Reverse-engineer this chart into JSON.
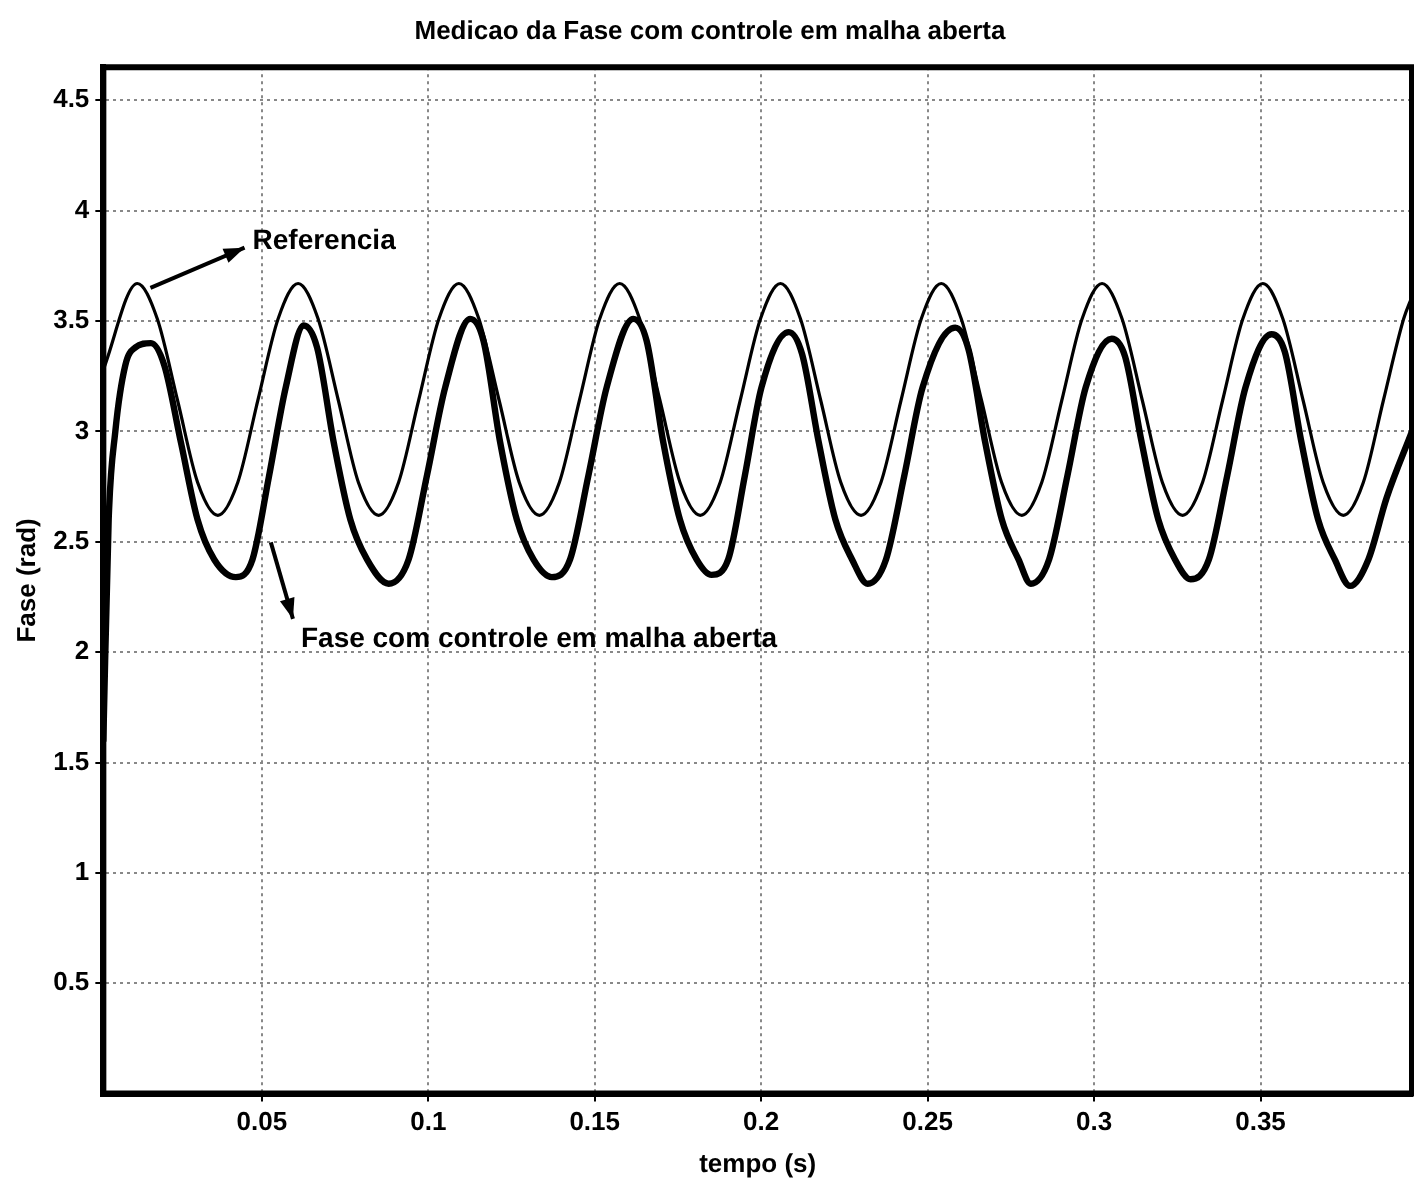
{
  "chart_data": {
    "type": "line",
    "title": "Medicao da Fase com controle em malha aberta",
    "xlabel": "tempo (s)",
    "ylabel": "Fase (rad)",
    "xlim": [
      0.0024,
      0.3955
    ],
    "xticks": [
      0.05,
      0.1,
      0.15,
      0.2,
      0.25,
      0.3,
      0.35
    ],
    "ylim": [
      0,
      4.65
    ],
    "yticks": [
      0.5,
      1,
      1.5,
      2,
      2.5,
      3,
      3.5,
      4,
      4.5
    ],
    "grid": true,
    "legend": false,
    "marker": "none",
    "line_style": "solid",
    "annotations": [
      "Referencia",
      "Fase com controle em malha aberta"
    ],
    "series": [
      {
        "color": "#000000",
        "x": [
          0.0024,
          0.0126,
          0.0186,
          0.0247,
          0.0307,
          0.0368,
          0.0428,
          0.0488,
          0.0549,
          0.0609,
          0.0669,
          0.073,
          0.079,
          0.0851,
          0.0911,
          0.0971,
          0.1032,
          0.1092,
          0.1152,
          0.1213,
          0.1273,
          0.1334,
          0.1394,
          0.1454,
          0.1515,
          0.1575,
          0.1635,
          0.1696,
          0.1756,
          0.1817,
          0.1877,
          0.1937,
          0.1998,
          0.2058,
          0.2118,
          0.2179,
          0.2239,
          0.23,
          0.236,
          0.242,
          0.2481,
          0.2541,
          0.2601,
          0.2662,
          0.2722,
          0.2783,
          0.2843,
          0.2903,
          0.2964,
          0.3024,
          0.3084,
          0.3145,
          0.3205,
          0.3266,
          0.3326,
          0.3386,
          0.3447,
          0.3507,
          0.3567,
          0.3628,
          0.3688,
          0.3749,
          0.3809,
          0.3869,
          0.393,
          0.3955
        ],
        "values": [
          3.28,
          3.67,
          3.51,
          3.14,
          2.77,
          2.62,
          2.77,
          3.14,
          3.51,
          3.67,
          3.51,
          3.14,
          2.77,
          2.62,
          2.77,
          3.14,
          3.51,
          3.67,
          3.51,
          3.14,
          2.77,
          2.62,
          2.77,
          3.14,
          3.51,
          3.67,
          3.51,
          3.14,
          2.77,
          2.62,
          2.77,
          3.14,
          3.51,
          3.67,
          3.51,
          3.14,
          2.77,
          2.62,
          2.77,
          3.14,
          3.51,
          3.67,
          3.51,
          3.14,
          2.77,
          2.62,
          2.77,
          3.14,
          3.51,
          3.67,
          3.51,
          3.14,
          2.77,
          2.62,
          2.77,
          3.14,
          3.51,
          3.67,
          3.51,
          3.14,
          2.77,
          2.62,
          2.77,
          3.14,
          3.51,
          3.61
        ]
      },
      {
        "color": "#000000",
        "x": [
          0.0024,
          0.004,
          0.006,
          0.009,
          0.012,
          0.0167,
          0.0207,
          0.0257,
          0.0307,
          0.0357,
          0.0422,
          0.0472,
          0.0522,
          0.0572,
          0.0626,
          0.0666,
          0.0716,
          0.0766,
          0.0816,
          0.0881,
          0.0941,
          0.0996,
          0.1051,
          0.1126,
          0.1166,
          0.1216,
          0.1266,
          0.1316,
          0.1371,
          0.1426,
          0.1481,
          0.1536,
          0.1616,
          0.1656,
          0.1706,
          0.1756,
          0.1806,
          0.1851,
          0.1901,
          0.1951,
          0.2001,
          0.2083,
          0.2123,
          0.2173,
          0.2223,
          0.2273,
          0.232,
          0.2375,
          0.243,
          0.2485,
          0.2583,
          0.2623,
          0.2673,
          0.2723,
          0.2773,
          0.281,
          0.2865,
          0.292,
          0.2975,
          0.3053,
          0.3093,
          0.3143,
          0.3193,
          0.3243,
          0.329,
          0.3345,
          0.34,
          0.3455,
          0.3533,
          0.3573,
          0.3623,
          0.3673,
          0.3723,
          0.3769,
          0.3824,
          0.3879,
          0.3955
        ],
        "values": [
          1.6,
          2.6,
          3.0,
          3.3,
          3.38,
          3.4,
          3.3,
          2.95,
          2.6,
          2.42,
          2.34,
          2.42,
          2.8,
          3.2,
          3.48,
          3.38,
          2.95,
          2.6,
          2.42,
          2.31,
          2.42,
          2.8,
          3.2,
          3.51,
          3.41,
          2.95,
          2.6,
          2.42,
          2.34,
          2.42,
          2.8,
          3.2,
          3.51,
          3.41,
          2.95,
          2.6,
          2.42,
          2.35,
          2.42,
          2.8,
          3.2,
          3.45,
          3.35,
          2.95,
          2.6,
          2.42,
          2.31,
          2.42,
          2.8,
          3.2,
          3.47,
          3.37,
          2.95,
          2.6,
          2.42,
          2.31,
          2.42,
          2.8,
          3.2,
          3.42,
          3.34,
          2.95,
          2.6,
          2.42,
          2.33,
          2.42,
          2.8,
          3.2,
          3.44,
          3.36,
          2.95,
          2.6,
          2.42,
          2.3,
          2.42,
          2.7,
          3.0
        ]
      }
    ]
  }
}
